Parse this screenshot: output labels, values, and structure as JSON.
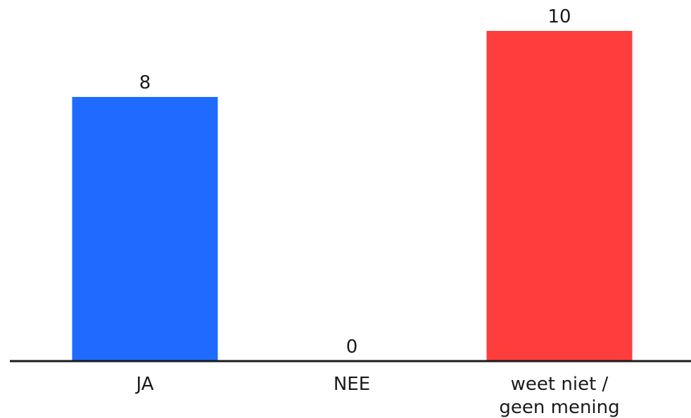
{
  "chart_data": {
    "type": "bar",
    "title": "",
    "xlabel": "",
    "ylabel": "",
    "categories": [
      "JA",
      "NEE",
      "weet niet / geen mening"
    ],
    "category_lines": [
      [
        "JA"
      ],
      [
        "NEE"
      ],
      [
        "weet niet /",
        "geen mening"
      ]
    ],
    "values": [
      8,
      0,
      10
    ],
    "colors": [
      "#1F6BFF",
      "#FFFFFF",
      "#FF3D3D"
    ],
    "axis_color": "#1a1a1a",
    "ylim": [
      0,
      10
    ],
    "grid": false,
    "legend": "none"
  }
}
